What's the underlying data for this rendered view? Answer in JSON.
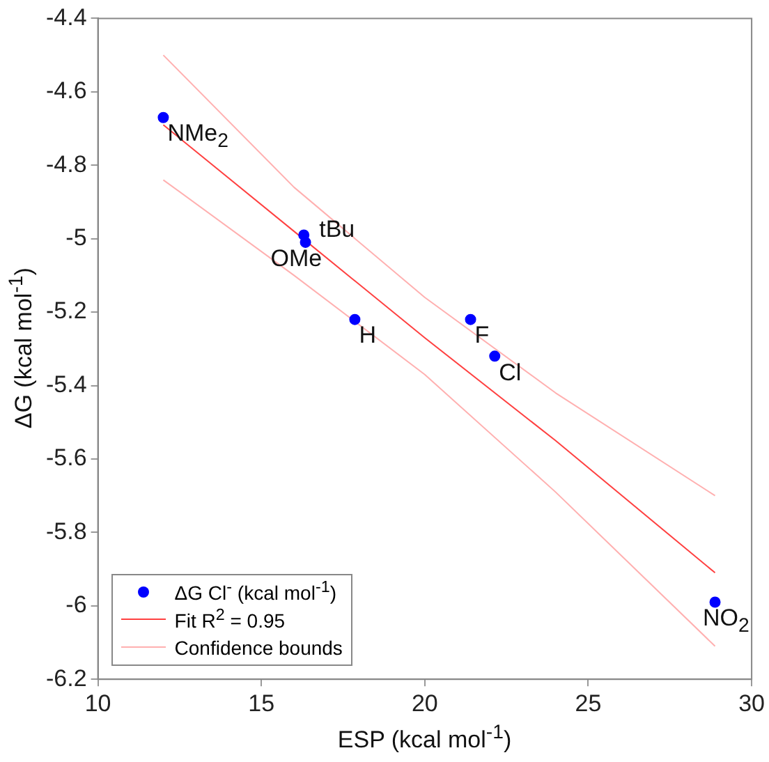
{
  "chart_data": {
    "type": "scatter",
    "xlabel": "ESP (kcal mol$^{-1}$)",
    "ylabel": "ΔG (kcal mol$^{-1}$)",
    "xlim": [
      10,
      30
    ],
    "xticks": [
      10,
      15,
      20,
      25,
      30
    ],
    "ylim": [
      -6.2,
      -4.4
    ],
    "yticks": [
      -6.2,
      -6,
      -5.8,
      -5.6,
      -5.4,
      -5.2,
      -5,
      -4.8,
      -4.6,
      -4.4
    ],
    "grid": false,
    "legend": "bottom left",
    "series": [
      {
        "name": "ΔG Cl$^{-}$ (kcal mol$^{-1}$)",
        "marker": "circle",
        "color": "#0000ff",
        "x": [
          12.0,
          16.3,
          16.35,
          17.86,
          21.4,
          22.14,
          28.88
        ],
        "values": [
          -4.67,
          -4.99,
          -5.01,
          -5.22,
          -5.22,
          -5.32,
          -5.99
        ]
      },
      {
        "name": "Fit R$^{2}$ = 0.95",
        "type": "line",
        "marker": "none",
        "color": "#ff4040",
        "x": [
          12,
          16,
          20,
          24,
          28.88
        ],
        "values": [
          -4.69,
          -4.98,
          -5.27,
          -5.55,
          -5.91
        ]
      },
      {
        "name": "Confidence bounds",
        "type": "line",
        "marker": "none",
        "color": "#ffb0b0",
        "x": [
          12,
          16,
          20,
          24,
          28.88
        ],
        "values": [
          -4.5,
          -4.86,
          -5.16,
          -5.42,
          -5.7
        ]
      },
      {
        "type": "line",
        "marker": "none",
        "color": "#ffb0b0",
        "x": [
          12,
          16,
          20,
          24,
          28.88
        ],
        "values": [
          -4.84,
          -5.1,
          -5.37,
          -5.69,
          -6.11
        ]
      }
    ],
    "annotations": [
      {
        "text": "NMe$_{2}$",
        "x": 12.0,
        "y": -4.67
      },
      {
        "text": "tBu",
        "x": 16.3,
        "y": -4.99
      },
      {
        "text": "OMe",
        "x": 16.35,
        "y": -5.01
      },
      {
        "text": "H",
        "x": 17.86,
        "y": -5.22
      },
      {
        "text": "F",
        "x": 21.4,
        "y": -5.22
      },
      {
        "text": "Cl",
        "x": 22.14,
        "y": -5.32
      },
      {
        "text": "NO$_{2}$",
        "x": 28.88,
        "y": -5.99
      }
    ]
  }
}
